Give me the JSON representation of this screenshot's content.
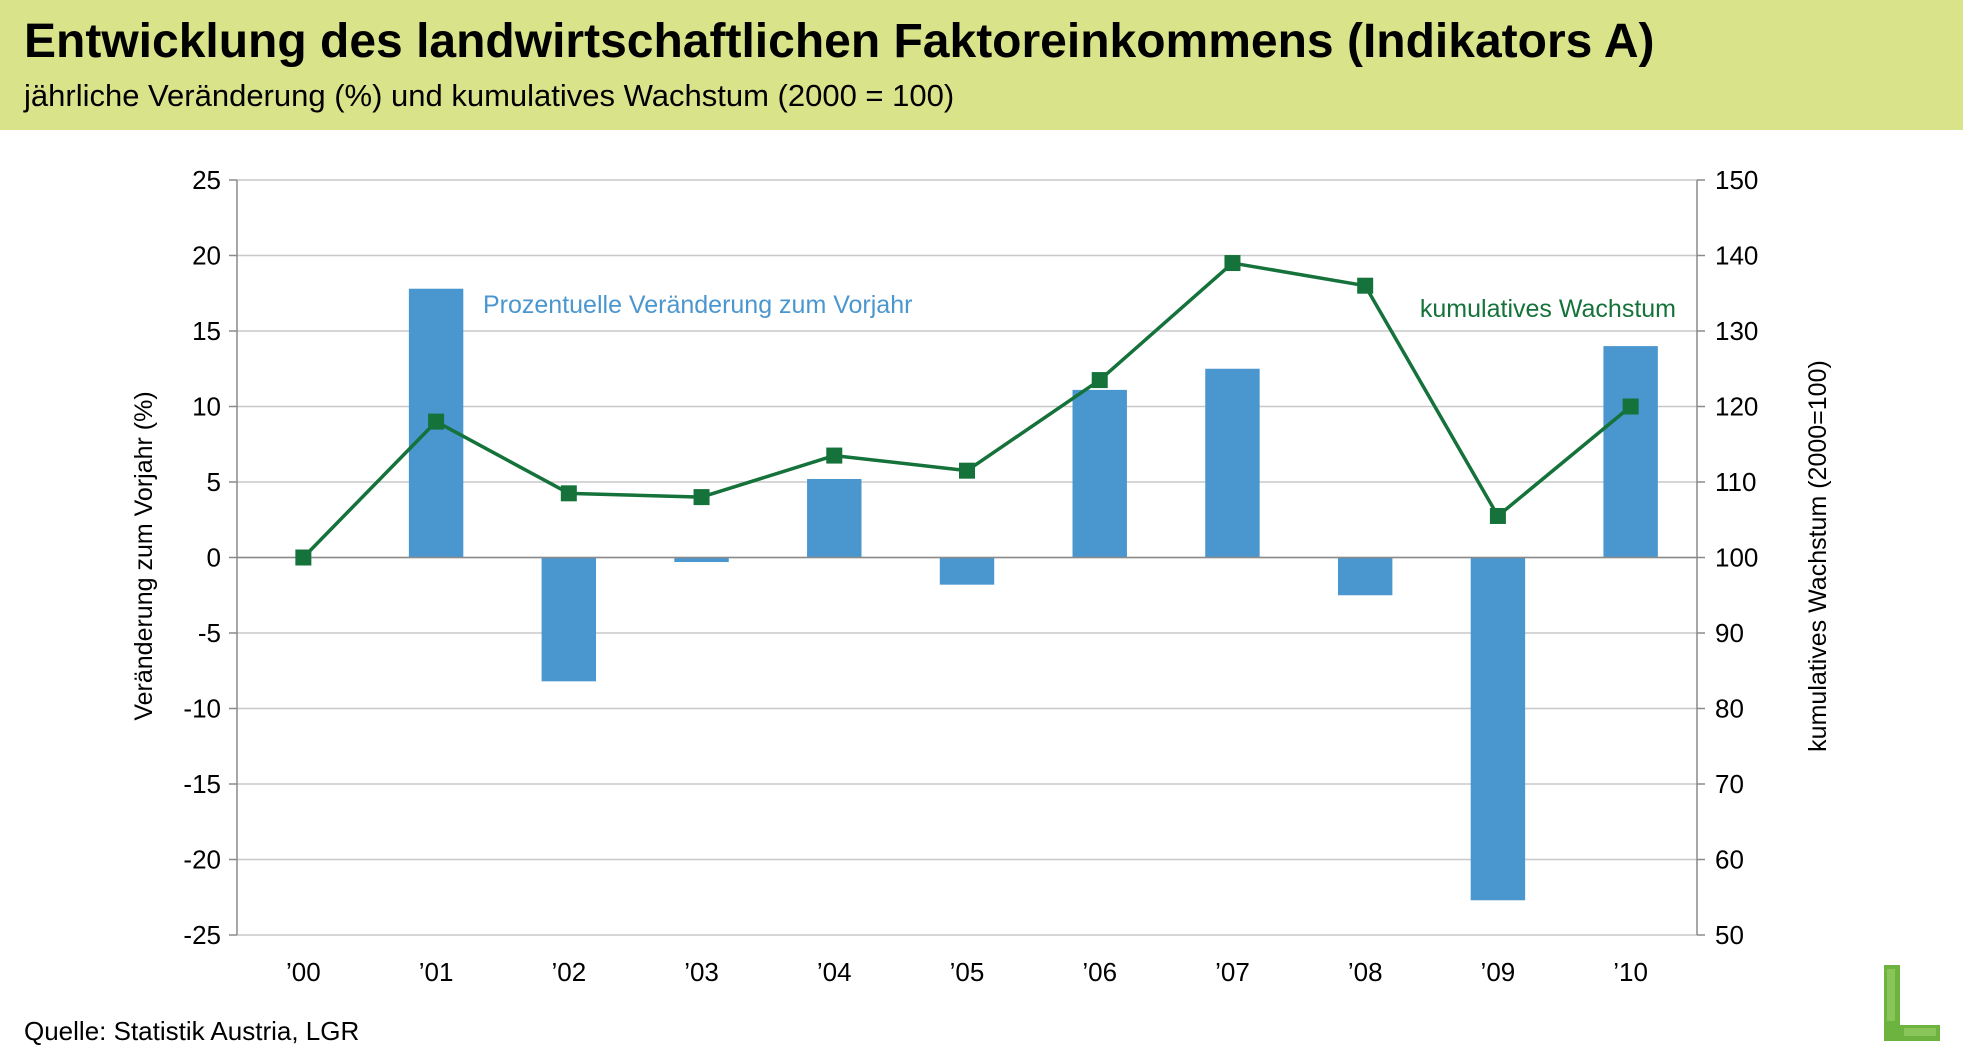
{
  "header": {
    "title": "Entwicklung des landwirtschaftlichen Faktoreinkommens (Indikators A)",
    "subtitle": "jährliche Veränderung (%) und kumulatives Wachstum (2000 = 100)"
  },
  "footer": {
    "source": "Quelle: Statistik Austria, LGR"
  },
  "logo": {
    "icon": "green-l-logo-icon"
  },
  "colors": {
    "header_bg": "#d9e38a",
    "bar": "#4a96cf",
    "line": "#14723a",
    "grid": "#c8c8c8"
  },
  "chart_data": {
    "type": "bar",
    "categories": [
      "’00",
      "’01",
      "’02",
      "’03",
      "’04",
      "’05",
      "’06",
      "’07",
      "’08",
      "’09",
      "’10"
    ],
    "series": [
      {
        "name": "Prozentuelle Veränderung zum Vorjahr",
        "type": "bar",
        "axis": "left",
        "values": [
          null,
          17.8,
          -8.2,
          -0.3,
          5.2,
          -1.8,
          11.1,
          12.5,
          -2.5,
          -22.7,
          14.0
        ]
      },
      {
        "name": "kumulatives Wachstum",
        "type": "line",
        "axis": "right",
        "marker": "square",
        "values": [
          100,
          118,
          108.5,
          108,
          113.5,
          111.5,
          123.5,
          139,
          136,
          105.5,
          120
        ]
      }
    ],
    "ylabel": "Veränderung zum Vorjahr (%)",
    "y2label": "kumulatives Wachstum (2000=100)",
    "ylim": [
      -25,
      25
    ],
    "y2lim": [
      50,
      150
    ],
    "yticks": [
      25,
      20,
      15,
      10,
      5,
      0,
      -5,
      -10,
      -15,
      -20,
      -25
    ],
    "y2ticks": [
      150,
      140,
      130,
      120,
      110,
      100,
      90,
      80,
      70,
      60,
      50
    ],
    "grid": true,
    "legend": "inline labels"
  }
}
